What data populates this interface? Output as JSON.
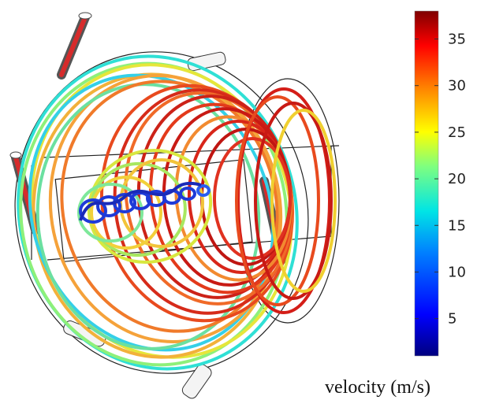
{
  "colorbar": {
    "ticks": [
      "5",
      "10",
      "15",
      "20",
      "25",
      "30",
      "35"
    ],
    "range": [
      1,
      38
    ],
    "colors": [
      "#00007f",
      "#0000ff",
      "#0080ff",
      "#00e5e5",
      "#7fff7f",
      "#ffff00",
      "#ff8000",
      "#ff0000",
      "#7f0000"
    ]
  },
  "caption": {
    "quantity_label": "velocity (m/s)"
  }
}
